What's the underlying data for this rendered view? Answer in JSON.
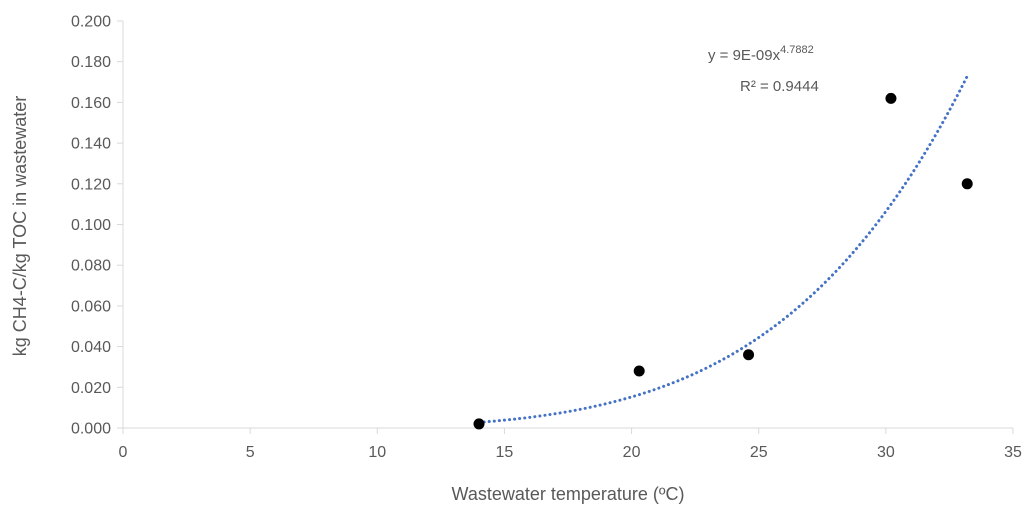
{
  "chart_data": {
    "type": "scatter",
    "xlabel": "Wastewater temperature (ºC)",
    "ylabel": "kg CH4-C/kg TOC in wastewater",
    "xlim": [
      0,
      35
    ],
    "ylim": [
      0,
      0.2
    ],
    "x_ticks": [
      "0",
      "5",
      "10",
      "15",
      "20",
      "25",
      "30",
      "35"
    ],
    "y_ticks": [
      "0.000",
      "0.020",
      "0.040",
      "0.060",
      "0.080",
      "0.100",
      "0.120",
      "0.140",
      "0.160",
      "0.180",
      "0.200"
    ],
    "grid": false,
    "legend": "none",
    "points": [
      {
        "x": 14.0,
        "y": 0.002
      },
      {
        "x": 20.3,
        "y": 0.028
      },
      {
        "x": 24.6,
        "y": 0.036
      },
      {
        "x": 30.2,
        "y": 0.162
      },
      {
        "x": 33.2,
        "y": 0.12
      }
    ],
    "trendline": {
      "type": "power",
      "coefficient": 9e-09,
      "exponent": 4.7882,
      "x_range": [
        14.0,
        33.2
      ],
      "equation_prefix": "y = 9E-09x",
      "equation_exponent": "4.7882",
      "r_squared_label": "R² = 0.9444"
    },
    "colors": {
      "points": "#000000",
      "trendline": "#4472C4",
      "text": "#595959",
      "axis": "#D9D9D9"
    }
  }
}
